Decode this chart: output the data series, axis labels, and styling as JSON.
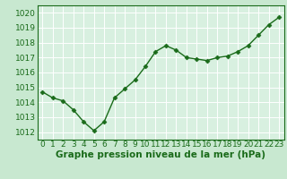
{
  "x": [
    0,
    1,
    2,
    3,
    4,
    5,
    6,
    7,
    8,
    9,
    10,
    11,
    12,
    13,
    14,
    15,
    16,
    17,
    18,
    19,
    20,
    21,
    22,
    23
  ],
  "y": [
    1014.7,
    1014.3,
    1014.1,
    1013.5,
    1012.7,
    1012.1,
    1012.7,
    1014.3,
    1014.9,
    1015.5,
    1016.4,
    1017.4,
    1017.8,
    1017.5,
    1017.0,
    1016.9,
    1016.8,
    1017.0,
    1017.1,
    1017.4,
    1017.8,
    1018.5,
    1019.2,
    1019.7
  ],
  "line_color": "#1a6b1a",
  "marker": "D",
  "marker_size": 2.5,
  "bg_color": "#c8e8d0",
  "plot_bg_color": "#d8f0e0",
  "grid_color": "#ffffff",
  "xlabel": "Graphe pression niveau de la mer (hPa)",
  "xlabel_fontsize": 7.5,
  "xlabel_color": "#1a6b1a",
  "xlabel_bold": true,
  "ylim": [
    1011.5,
    1020.5
  ],
  "yticks": [
    1012,
    1013,
    1014,
    1015,
    1016,
    1017,
    1018,
    1019,
    1020
  ],
  "xticks": [
    0,
    1,
    2,
    3,
    4,
    5,
    6,
    7,
    8,
    9,
    10,
    11,
    12,
    13,
    14,
    15,
    16,
    17,
    18,
    19,
    20,
    21,
    22,
    23
  ],
  "tick_fontsize": 6.5,
  "tick_color": "#1a6b1a",
  "linewidth": 1.0
}
